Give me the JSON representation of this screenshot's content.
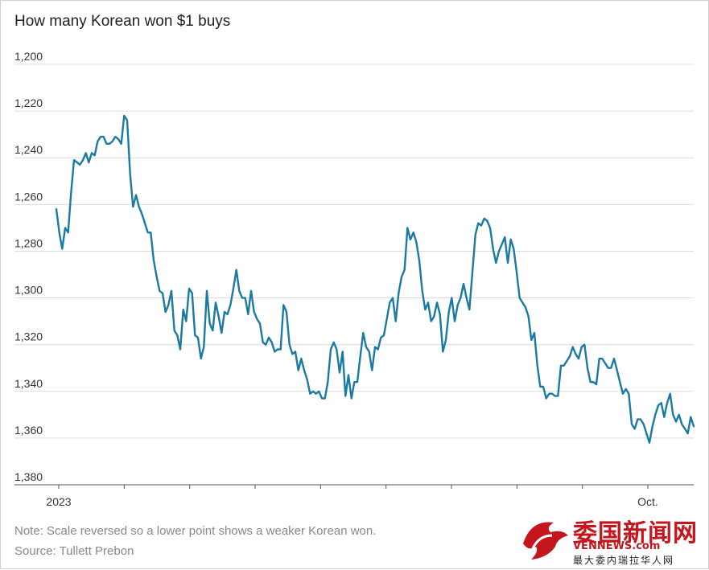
{
  "chart_data": {
    "type": "line",
    "title": "How many Korean won $1 buys",
    "xlabel": "",
    "ylabel": "",
    "y_reversed": true,
    "ylim": [
      1200,
      1380
    ],
    "yticks": [
      1200,
      1220,
      1240,
      1260,
      1280,
      1300,
      1320,
      1340,
      1360,
      1380
    ],
    "ytick_labels": [
      "1,200",
      "1,220",
      "1,240",
      "1,260",
      "1,280",
      "1,300",
      "1,320",
      "1,340",
      "1,360",
      "1,380"
    ],
    "xlim": [
      -0.02,
      10.25
    ],
    "xticks": [
      0,
      1,
      2,
      3,
      4,
      5,
      6,
      7,
      8,
      9,
      10
    ],
    "xtick_labels": [
      "2023",
      "",
      "",
      "",
      "",
      "",
      "",
      "",
      "",
      "Oct.",
      ""
    ],
    "grid": true,
    "line_color": "#1b7aa3",
    "series": [
      {
        "values": [
          1262,
          1272,
          1279,
          1270,
          1272,
          1255,
          1241,
          1242,
          1243,
          1241,
          1238,
          1242,
          1238,
          1239,
          1233,
          1231,
          1231,
          1234,
          1234,
          1233,
          1231,
          1232,
          1234,
          1222,
          1224,
          1247,
          1261,
          1256,
          1261,
          1264,
          1268,
          1272,
          1272,
          1284,
          1291,
          1297,
          1298,
          1306,
          1303,
          1297,
          1314,
          1316,
          1322,
          1305,
          1310,
          1296,
          1298,
          1316,
          1317,
          1326,
          1321,
          1297,
          1311,
          1314,
          1302,
          1308,
          1315,
          1306,
          1307,
          1303,
          1296,
          1288,
          1297,
          1300,
          1300,
          1307,
          1297,
          1306,
          1309,
          1311,
          1319,
          1320,
          1317,
          1319,
          1323,
          1322,
          1322,
          1303,
          1306,
          1320,
          1324,
          1323,
          1331,
          1326,
          1331,
          1335,
          1341,
          1340,
          1341,
          1340,
          1343,
          1343,
          1336,
          1322,
          1319,
          1322,
          1332,
          1323,
          1342,
          1333,
          1343,
          1336,
          1336,
          1325,
          1315,
          1321,
          1323,
          1331,
          1321,
          1322,
          1317,
          1316,
          1309,
          1302,
          1300,
          1310,
          1298,
          1291,
          1288,
          1270,
          1275,
          1272,
          1276,
          1284,
          1297,
          1305,
          1302,
          1310,
          1308,
          1302,
          1307,
          1323,
          1318,
          1306,
          1300,
          1310,
          1303,
          1300,
          1294,
          1300,
          1305,
          1289,
          1273,
          1268,
          1269,
          1266,
          1267,
          1270,
          1279,
          1285,
          1280,
          1277,
          1274,
          1285,
          1275,
          1279,
          1289,
          1300,
          1302,
          1304,
          1308,
          1318,
          1315,
          1329,
          1338,
          1338,
          1343,
          1341,
          1341,
          1342,
          1342,
          1329,
          1329,
          1327,
          1325,
          1321,
          1324,
          1326,
          1321,
          1320,
          1330,
          1336,
          1336,
          1337,
          1326,
          1326,
          1328,
          1330,
          1330,
          1326,
          1331,
          1336,
          1341,
          1339,
          1341,
          1354,
          1356,
          1352,
          1352,
          1354,
          1358,
          1362,
          1355,
          1350,
          1346,
          1345,
          1351,
          1345,
          1341,
          1350,
          1353,
          1350,
          1354,
          1356,
          1358,
          1351,
          1355
        ]
      }
    ]
  },
  "notes": {
    "line1": "Note: Scale reversed so a lower point shows a weaker Korean won.",
    "line2": "Source: Tullett Prebon"
  },
  "watermark": {
    "main": "委国新闻网",
    "url": "VENNEWS.com",
    "sub": "最大委内瑞拉华人网"
  }
}
